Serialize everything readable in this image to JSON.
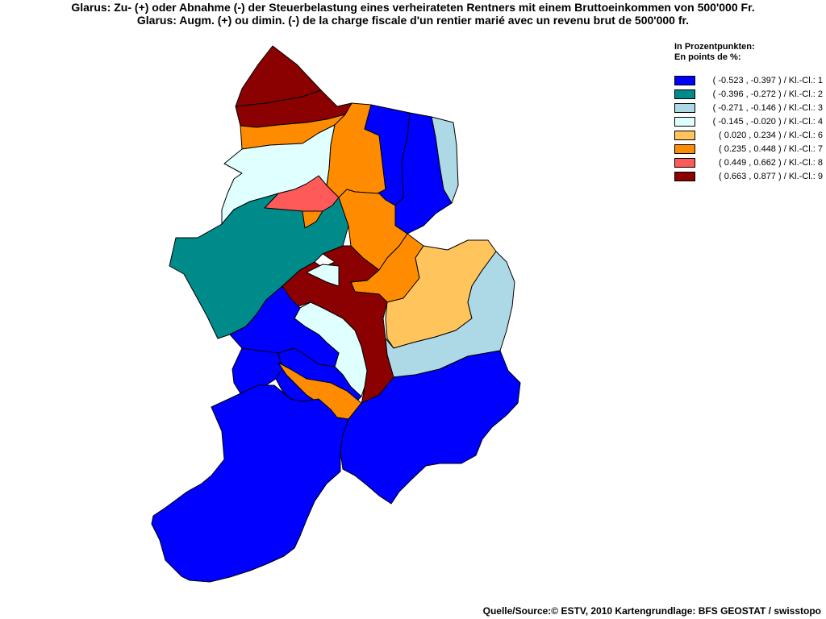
{
  "title": {
    "line1": "Glarus: Zu- (+) oder Abnahme (-) der Steuerbelastung eines verheirateten Rentners mit einem Bruttoeinkommen von 500'000 Fr.",
    "line2": "Glarus: Augm. (+) ou dimin. (-) de la charge fiscale d'un rentier marié avec un revenu brut de 500'000 fr."
  },
  "legend": {
    "heading_de": "In Prozentpunkten:",
    "heading_fr": "En points de %:",
    "classes": [
      {
        "label": "( -0.523 , -0.397 ) / Kl.-Cl.: 1",
        "color": "#0000ff"
      },
      {
        "label": "( -0.396 , -0.272 ) / Kl.-Cl.: 2",
        "color": "#008b8b"
      },
      {
        "label": "( -0.271 , -0.146 ) / Kl.-Cl.: 3",
        "color": "#add8e6"
      },
      {
        "label": "( -0.145 , -0.020 ) / Kl.-Cl.: 4",
        "color": "#e0ffff"
      },
      {
        "label": "( 0.020 , 0.234 ) / Kl.-Cl.: 6",
        "color": "#ffc55c"
      },
      {
        "label": "( 0.235 , 0.448 ) / Kl.-Cl.: 7",
        "color": "#ff8c00"
      },
      {
        "label": "( 0.449 , 0.662 ) / Kl.-Cl.: 8",
        "color": "#ff5a5a"
      },
      {
        "label": "( 0.663 , 0.877 ) / Kl.-Cl.: 9",
        "color": "#8b0000"
      }
    ]
  },
  "map": {
    "regions": [
      {
        "id": "north-tip",
        "class": 9
      },
      {
        "id": "north-band",
        "class": 9
      },
      {
        "id": "north-orange",
        "class": 7
      },
      {
        "id": "west-lightcyan",
        "class": 4
      },
      {
        "id": "salmon",
        "class": 8
      },
      {
        "id": "salmon-orange-notch",
        "class": 7
      },
      {
        "id": "orange-central-north",
        "class": 7
      },
      {
        "id": "blue-ne-left",
        "class": 1
      },
      {
        "id": "blue-ne-right",
        "class": 1
      },
      {
        "id": "lightblue-ne",
        "class": 3
      },
      {
        "id": "teal-west",
        "class": 2
      },
      {
        "id": "orange-mid",
        "class": 7
      },
      {
        "id": "orange-mid-low",
        "class": 7
      },
      {
        "id": "darkred-central",
        "class": 9
      },
      {
        "id": "lightcyan-small",
        "class": 4
      },
      {
        "id": "lightcyan-center",
        "class": 4
      },
      {
        "id": "lightorange-east",
        "class": 6
      },
      {
        "id": "lightblue-east",
        "class": 3
      },
      {
        "id": "blue-west-mid",
        "class": 1
      },
      {
        "id": "blue-small-west",
        "class": 1
      },
      {
        "id": "blue-small-mid",
        "class": 1
      },
      {
        "id": "orange-south",
        "class": 7
      },
      {
        "id": "blue-south-west",
        "class": 1
      },
      {
        "id": "blue-south-east",
        "class": 1
      }
    ]
  },
  "source": "Quelle/Source:© ESTV, 2010 Kartengrundlage: BFS GEOSTAT / swisstopo"
}
